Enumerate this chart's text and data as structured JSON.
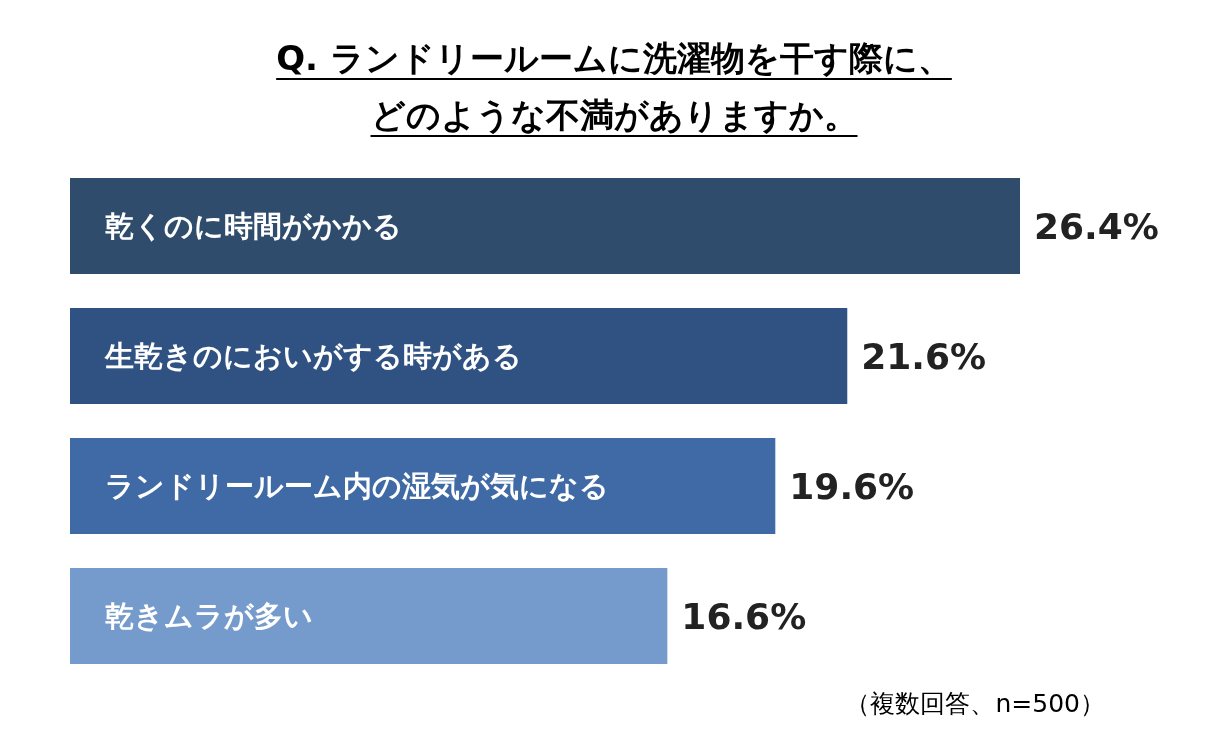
{
  "chart_data": {
    "type": "bar",
    "orientation": "horizontal",
    "title": "Q. ランドリールームに洗濯物を干す際に、どのような不満がありますか。",
    "categories": [
      "乾くのに時間がかかる",
      "生乾きのにおいがする時がある",
      "ランドリールーム内の湿気が気になる",
      "乾きムラが多い"
    ],
    "values": [
      26.4,
      21.6,
      19.6,
      16.6
    ],
    "colors": [
      "#304c6c",
      "#2f5283",
      "#3f6aa5",
      "#749bcb"
    ],
    "value_labels": [
      "26.4%",
      "21.6%",
      "19.6%",
      "16.6%"
    ],
    "annotations": [
      "（複数回答、n=500）"
    ]
  }
}
